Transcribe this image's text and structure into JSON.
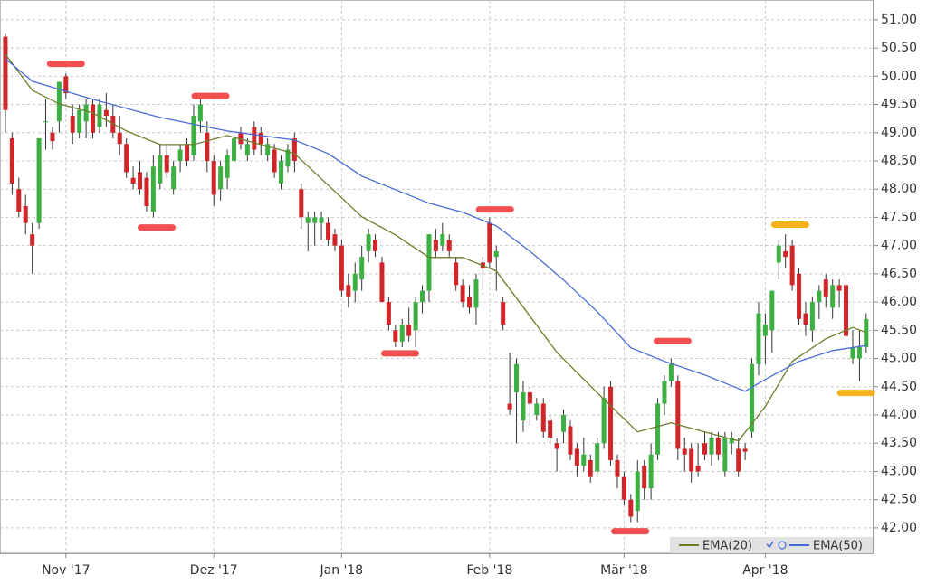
{
  "chart_data": {
    "type": "candlestick",
    "up_color": "#3cb043",
    "down_color": "#d0262a",
    "categories": [
      null,
      null,
      null,
      null,
      null,
      null,
      null,
      null,
      null,
      "Nov '17",
      null,
      null,
      null,
      null,
      null,
      null,
      null,
      null,
      null,
      null,
      null,
      null,
      null,
      null,
      null,
      null,
      null,
      null,
      null,
      null,
      null,
      "Dez '17",
      null,
      null,
      null,
      null,
      null,
      null,
      null,
      null,
      null,
      null,
      null,
      null,
      null,
      null,
      null,
      null,
      null,
      null,
      "Jan '18",
      null,
      null,
      null,
      null,
      null,
      null,
      null,
      null,
      null,
      null,
      null,
      null,
      null,
      null,
      null,
      null,
      null,
      null,
      null,
      null,
      null,
      "Feb '18",
      null,
      null,
      null,
      null,
      null,
      null,
      null,
      null,
      null,
      null,
      null,
      null,
      null,
      null,
      null,
      null,
      null,
      null,
      null,
      "Mär '18",
      null,
      null,
      null,
      null,
      null,
      null,
      null,
      null,
      null,
      null,
      null,
      null,
      null,
      null,
      null,
      null,
      null,
      null,
      null,
      null,
      "Apr '18",
      null,
      null,
      null,
      null,
      null,
      null,
      null,
      null,
      null,
      null,
      null,
      null,
      null,
      null,
      null
    ],
    "open": [
      50.7,
      48.9,
      48.0,
      47.7,
      47.2,
      47.4,
      49.2,
      49.0,
      49.2,
      50.0,
      49.3,
      49.0,
      49.2,
      49.5,
      49.1,
      49.4,
      49.3,
      49.0,
      48.8,
      48.2,
      48.3,
      48.2,
      47.6,
      48.1,
      48.6,
      48.0,
      48.5,
      48.8,
      48.6,
      49.2,
      49.0,
      48.5,
      48.0,
      48.2,
      48.5,
      49.0,
      48.6,
      49.1,
      49.0,
      48.6,
      48.7,
      48.1,
      48.4,
      48.9,
      48.0,
      47.4,
      47.4,
      47.4,
      47.4,
      47.2,
      47.0,
      46.3,
      46.2,
      46.4,
      46.9,
      47.1,
      46.7,
      46.0,
      45.5,
      45.3,
      45.6,
      45.5,
      46.0,
      46.2,
      47.1,
      47.0,
      47.1,
      46.7,
      46.3,
      46.1,
      45.9,
      46.7,
      47.4,
      46.8,
      46.0,
      44.2,
      44.4,
      43.9,
      44.4,
      44.0,
      44.2,
      43.9,
      43.5,
      43.7,
      43.8,
      43.4,
      43.1,
      43.2,
      43.0,
      43.5,
      44.5,
      43.2,
      42.9,
      42.5,
      42.3,
      43.1,
      42.7,
      43.3,
      44.2,
      44.6,
      44.6,
      43.4,
      43.4,
      43.1,
      43.5,
      43.3,
      43.6,
      43.0,
      43.5,
      43.4,
      43.4,
      43.7,
      44.9,
      45.4,
      45.5,
      46.7,
      46.9,
      47.0,
      46.5,
      45.8,
      45.5,
      46.0,
      46.4,
      45.9,
      46.3,
      46.3,
      45.0,
      45.0,
      45.2
    ],
    "high": [
      50.75,
      49.0,
      48.2,
      47.9,
      47.4,
      48.9,
      49.6,
      49.1,
      49.9,
      50.05,
      49.5,
      49.5,
      49.6,
      49.6,
      49.6,
      49.7,
      49.5,
      49.3,
      48.9,
      48.4,
      48.5,
      48.3,
      48.6,
      48.8,
      48.8,
      48.5,
      48.8,
      48.9,
      49.5,
      49.7,
      49.2,
      48.6,
      48.5,
      48.7,
      49.0,
      49.1,
      48.9,
      49.2,
      49.1,
      48.9,
      48.8,
      48.6,
      48.8,
      49.0,
      48.1,
      47.6,
      47.6,
      47.6,
      47.5,
      47.3,
      47.1,
      46.5,
      46.7,
      47.0,
      47.3,
      47.2,
      46.8,
      46.1,
      45.6,
      45.7,
      45.9,
      46.1,
      46.3,
      47.2,
      47.3,
      47.4,
      47.2,
      46.8,
      46.4,
      46.3,
      46.5,
      46.8,
      47.5,
      47.0,
      46.1,
      45.1,
      45.0,
      44.6,
      44.5,
      44.3,
      44.3,
      44.0,
      43.6,
      44.1,
      43.9,
      43.5,
      43.6,
      43.3,
      43.6,
      44.5,
      44.6,
      43.3,
      43.0,
      42.6,
      43.2,
      43.2,
      43.5,
      44.3,
      44.7,
      45.0,
      44.7,
      43.6,
      43.5,
      43.5,
      43.7,
      43.7,
      43.7,
      43.7,
      43.7,
      43.6,
      43.5,
      45.0,
      46.0,
      45.8,
      46.2,
      47.1,
      47.2,
      47.1,
      46.6,
      46.0,
      46.1,
      46.3,
      46.5,
      46.4,
      46.4,
      46.4,
      45.5,
      45.5,
      45.8
    ],
    "low": [
      49.0,
      47.9,
      47.5,
      47.2,
      46.5,
      47.3,
      48.7,
      48.7,
      49.0,
      49.6,
      48.8,
      48.9,
      48.9,
      48.9,
      49.0,
      49.1,
      48.9,
      48.6,
      48.2,
      48.0,
      47.9,
      47.6,
      47.5,
      48.0,
      48.2,
      47.9,
      48.3,
      48.4,
      48.5,
      49.0,
      48.3,
      47.7,
      47.8,
      48.0,
      48.4,
      48.7,
      48.5,
      48.6,
      48.6,
      48.5,
      48.2,
      48.0,
      48.3,
      48.3,
      47.3,
      46.9,
      47.0,
      47.1,
      47.0,
      46.9,
      46.1,
      45.9,
      46.0,
      46.2,
      46.7,
      46.8,
      46.0,
      45.5,
      45.2,
      45.2,
      45.3,
      45.2,
      45.8,
      46.0,
      46.8,
      46.9,
      46.8,
      46.2,
      45.9,
      45.8,
      45.6,
      46.2,
      46.6,
      46.2,
      45.5,
      44.0,
      43.5,
      43.7,
      43.8,
      43.9,
      43.6,
      43.5,
      43.0,
      43.5,
      43.2,
      42.9,
      43.0,
      42.8,
      42.9,
      43.4,
      43.1,
      42.7,
      42.4,
      42.1,
      42.1,
      42.5,
      42.5,
      43.2,
      44.0,
      44.5,
      43.2,
      43.0,
      42.8,
      42.9,
      43.2,
      43.1,
      43.2,
      42.9,
      43.3,
      42.9,
      43.2,
      43.6,
      44.7,
      44.9,
      45.1,
      46.4,
      46.6,
      46.2,
      45.6,
      45.4,
      45.3,
      45.7,
      45.9,
      45.7,
      45.9,
      45.2,
      44.9,
      44.6,
      45.1
    ],
    "close": [
      49.4,
      48.1,
      47.6,
      47.4,
      47.0,
      48.9,
      49.2,
      48.85,
      49.9,
      49.7,
      49.0,
      49.4,
      49.5,
      49.0,
      49.5,
      49.3,
      49.0,
      48.8,
      48.3,
      48.1,
      48.0,
      47.7,
      48.4,
      48.6,
      48.3,
      48.4,
      48.7,
      48.5,
      49.3,
      49.5,
      48.5,
      47.9,
      48.4,
      48.6,
      48.9,
      48.8,
      48.8,
      48.7,
      48.8,
      48.8,
      48.3,
      48.5,
      48.7,
      48.5,
      47.5,
      47.5,
      47.5,
      47.5,
      47.1,
      47.0,
      46.2,
      46.1,
      46.5,
      46.8,
      47.2,
      46.9,
      46.0,
      45.6,
      45.3,
      45.6,
      45.4,
      46.0,
      46.2,
      47.2,
      46.9,
      47.2,
      46.9,
      46.3,
      46.0,
      45.9,
      46.4,
      46.6,
      46.7,
      46.9,
      45.6,
      44.1,
      44.9,
      44.4,
      44.2,
      44.2,
      43.7,
      43.6,
      43.4,
      44.0,
      43.3,
      43.1,
      43.3,
      42.9,
      43.5,
      44.3,
      43.2,
      42.9,
      42.5,
      42.2,
      43.0,
      42.7,
      43.3,
      44.2,
      44.6,
      44.9,
      43.4,
      43.3,
      43.0,
      43.0,
      43.3,
      43.6,
      43.3,
      43.6,
      43.6,
      43.0,
      43.35,
      44.9,
      45.8,
      45.6,
      46.2,
      47.0,
      46.8,
      46.3,
      45.7,
      45.6,
      46.0,
      46.2,
      46.1,
      46.3,
      46.2,
      45.4,
      45.2,
      45.2,
      45.7
    ],
    "series": [
      {
        "name": "EMA(20)",
        "color": "#6b7f2a",
        "x": [
          0,
          4,
          8,
          13,
          18,
          23,
          28,
          33,
          38,
          43,
          48,
          53,
          58,
          63,
          68,
          73,
          77,
          82,
          88,
          94,
          99,
          104,
          109,
          113,
          117,
          122,
          126,
          128
        ],
        "values": [
          50.39,
          49.75,
          49.51,
          49.35,
          49.03,
          48.79,
          48.79,
          48.95,
          48.79,
          48.63,
          48.07,
          47.51,
          47.19,
          46.79,
          46.79,
          46.55,
          45.91,
          45.11,
          44.39,
          43.7,
          43.86,
          43.7,
          43.54,
          44.15,
          44.95,
          45.35,
          45.55,
          45.46
        ]
      },
      {
        "name": "EMA(50)",
        "color": "#4a6bd6",
        "x": [
          0,
          4,
          13,
          23,
          33,
          43,
          48,
          53,
          58,
          63,
          68,
          73,
          78,
          83,
          88,
          93,
          98,
          104,
          110,
          113,
          118,
          123,
          128
        ],
        "values": [
          50.31,
          49.91,
          49.59,
          49.27,
          49.03,
          48.87,
          48.63,
          48.23,
          47.99,
          47.75,
          47.59,
          47.35,
          46.9,
          46.39,
          45.83,
          45.19,
          44.95,
          44.71,
          44.42,
          44.63,
          44.95,
          45.14,
          45.23
        ]
      }
    ],
    "markers": [
      {
        "x": 9,
        "value": 50.22,
        "color": "#f05050"
      },
      {
        "x": 22.5,
        "value": 47.32,
        "color": "#f05050"
      },
      {
        "x": 30.5,
        "value": 49.65,
        "color": "#f05050"
      },
      {
        "x": 58.7,
        "value": 45.09,
        "color": "#f05050"
      },
      {
        "x": 72.8,
        "value": 47.64,
        "color": "#f05050"
      },
      {
        "x": 92.9,
        "value": 41.94,
        "color": "#f05050"
      },
      {
        "x": 99.2,
        "value": 45.31,
        "color": "#f05050"
      },
      {
        "x": 116.7,
        "value": 47.37,
        "color": "#f5b21c"
      },
      {
        "x": 126.5,
        "value": 44.39,
        "color": "#f5b21c"
      }
    ],
    "xlim": [
      -0.8,
      129.1
    ],
    "ylim": [
      41.55,
      51.35
    ],
    "yticks": [
      {
        "value": 42,
        "label": "42.00"
      },
      {
        "value": 42.5,
        "label": "42.50"
      },
      {
        "value": 43,
        "label": "43.00"
      },
      {
        "value": 43.5,
        "label": "43.50"
      },
      {
        "value": 44,
        "label": "44.00"
      },
      {
        "value": 44.5,
        "label": "44.50"
      },
      {
        "value": 45,
        "label": "45.00"
      },
      {
        "value": 45.5,
        "label": "45.50"
      },
      {
        "value": 46,
        "label": "46.00"
      },
      {
        "value": 46.5,
        "label": "46.50"
      },
      {
        "value": 47,
        "label": "47.00"
      },
      {
        "value": 47.5,
        "label": "47.50"
      },
      {
        "value": 48,
        "label": "48.00"
      },
      {
        "value": 48.5,
        "label": "48.50"
      },
      {
        "value": 49,
        "label": "49.00"
      },
      {
        "value": 49.5,
        "label": "49.50"
      },
      {
        "value": 50,
        "label": "50.00"
      },
      {
        "value": 50.5,
        "label": "50.50"
      },
      {
        "value": 51,
        "label": "51.00"
      }
    ],
    "grid": true,
    "legend": "lower right"
  }
}
